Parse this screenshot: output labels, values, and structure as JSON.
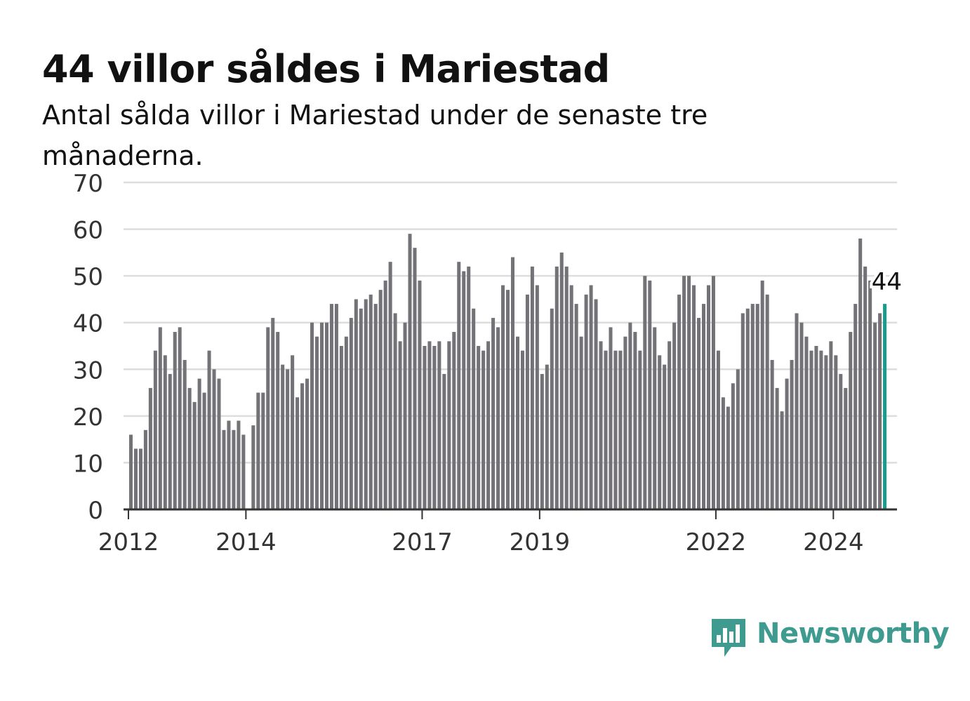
{
  "title": "44 villor såldes i Mariestad",
  "subtitle": "Antal sålda villor i Mariestad under de senaste tre månaderna.",
  "brand": {
    "name": "Newsworthy",
    "color": "#3f9a8f",
    "icon": "bar-chart-speech-bubble-icon"
  },
  "colors": {
    "bar": "#737276",
    "highlight": "#1a9c8c",
    "grid": "#dddddd",
    "axis": "#333333"
  },
  "chart_data": {
    "type": "bar",
    "title": "44 villor såldes i Mariestad",
    "subtitle": "Antal sålda villor i Mariestad under de senaste tre månaderna.",
    "xlabel": "",
    "ylabel": "",
    "ylim": [
      0,
      70
    ],
    "yticks": [
      0,
      10,
      20,
      30,
      40,
      50,
      60,
      70
    ],
    "grid": true,
    "x_start": "2011-12",
    "x_end": "2025-02",
    "xtick_labels": [
      {
        "label": "2012",
        "date": "2012-01"
      },
      {
        "label": "2014",
        "date": "2014-01"
      },
      {
        "label": "2017",
        "date": "2017-01"
      },
      {
        "label": "2019",
        "date": "2019-01"
      },
      {
        "label": "2022",
        "date": "2022-01"
      },
      {
        "label": "2024",
        "date": "2024-01"
      }
    ],
    "first_date": "2012-01",
    "values": [
      16,
      13,
      13,
      17,
      26,
      34,
      39,
      33,
      29,
      38,
      39,
      32,
      26,
      23,
      28,
      25,
      34,
      30,
      28,
      17,
      19,
      17,
      19,
      16,
      null,
      18,
      25,
      25,
      39,
      41,
      38,
      31,
      30,
      33,
      24,
      27,
      28,
      40,
      37,
      40,
      40,
      44,
      44,
      35,
      37,
      41,
      45,
      43,
      45,
      46,
      44,
      47,
      49,
      53,
      42,
      36,
      40,
      59,
      56,
      49,
      35,
      36,
      35,
      36,
      29,
      36,
      38,
      53,
      51,
      52,
      43,
      35,
      34,
      36,
      41,
      39,
      48,
      47,
      54,
      37,
      34,
      46,
      52,
      48,
      29,
      31,
      43,
      52,
      55,
      52,
      48,
      44,
      37,
      46,
      48,
      45,
      36,
      34,
      39,
      34,
      34,
      37,
      40,
      38,
      34,
      50,
      49,
      39,
      33,
      31,
      36,
      40,
      46,
      50,
      50,
      48,
      41,
      44,
      48,
      50,
      34,
      24,
      22,
      27,
      30,
      42,
      43,
      44,
      44,
      49,
      46,
      32,
      26,
      21,
      28,
      32,
      42,
      40,
      37,
      34,
      35,
      34,
      33,
      36,
      33,
      29,
      26,
      38,
      44,
      58,
      52,
      49,
      40,
      42,
      44
    ],
    "highlight": {
      "date": "2024-11",
      "value": 44,
      "label": "44"
    }
  }
}
